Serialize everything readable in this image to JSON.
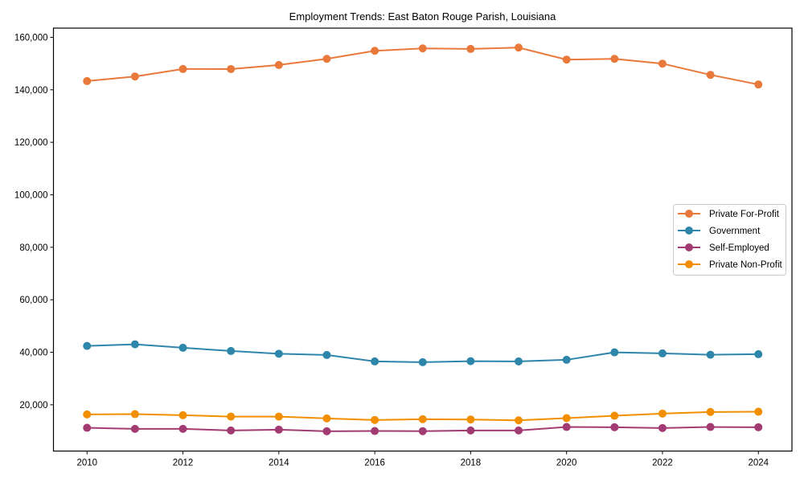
{
  "chart_data": {
    "type": "line",
    "title": "Employment Trends: East Baton Rouge Parish, Louisiana",
    "xlabel": "",
    "ylabel": "",
    "x": [
      2010,
      2011,
      2012,
      2013,
      2014,
      2015,
      2016,
      2017,
      2018,
      2019,
      2020,
      2021,
      2022,
      2023,
      2024
    ],
    "xlim": [
      2009.3,
      2024.7
    ],
    "ylim": [
      2360,
      163500
    ],
    "xticks": [
      2010,
      2012,
      2014,
      2016,
      2018,
      2020,
      2022,
      2024
    ],
    "xtick_labels": [
      "2010",
      "2012",
      "2014",
      "2016",
      "2018",
      "2020",
      "2022",
      "2024"
    ],
    "yticks": [
      20000,
      40000,
      60000,
      80000,
      100000,
      120000,
      140000,
      160000
    ],
    "ytick_labels": [
      "20,000",
      "40,000",
      "60,000",
      "80,000",
      "100,000",
      "120,000",
      "140,000",
      "160,000"
    ],
    "grid": false,
    "legend_position": "center-right",
    "series": [
      {
        "name": "Private For-Profit",
        "color": "#E9793A",
        "values": [
          143330,
          145070,
          147920,
          147900,
          149450,
          151800,
          154860,
          155780,
          155570,
          156080,
          151500,
          151800,
          149970,
          145690,
          142020
        ]
      },
      {
        "name": "Government",
        "color": "#2E86AB",
        "values": [
          42410,
          43030,
          41710,
          40490,
          39450,
          38960,
          36510,
          36210,
          36600,
          36510,
          37120,
          39970,
          39570,
          39050,
          39270
        ]
      },
      {
        "name": "Self-Employed",
        "color": "#A23B72",
        "values": [
          11220,
          10820,
          10820,
          10210,
          10520,
          9910,
          10000,
          9950,
          10210,
          10210,
          11530,
          11440,
          11130,
          11530,
          11440
        ]
      },
      {
        "name": "Private Non-Profit",
        "color": "#F18F01",
        "values": [
          16330,
          16430,
          16020,
          15500,
          15500,
          14800,
          14190,
          14500,
          14390,
          14070,
          14890,
          15810,
          16640,
          17250,
          17340
        ]
      }
    ]
  }
}
